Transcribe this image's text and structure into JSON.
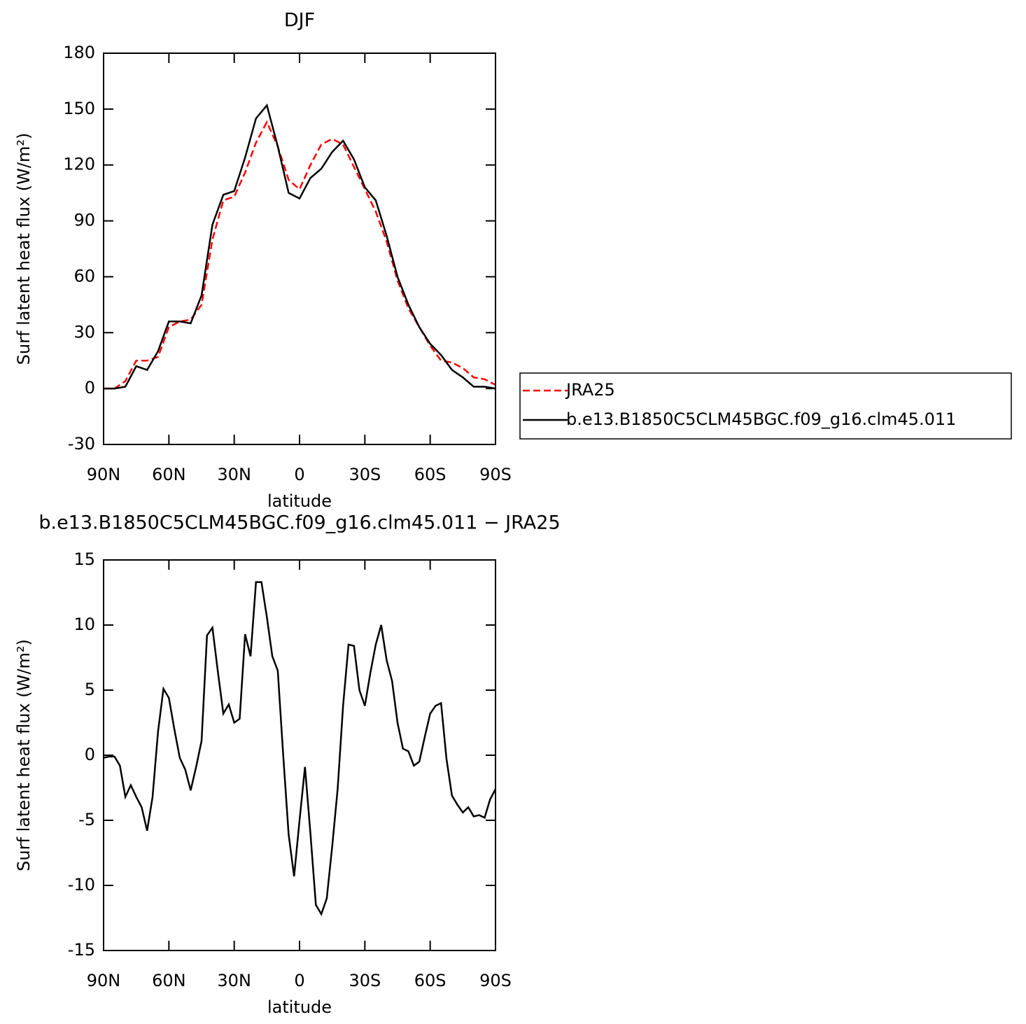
{
  "chart_data": [
    {
      "type": "line",
      "title": "DJF",
      "xlabel": "latitude",
      "ylabel": "Surf latent heat flux (W/m²)",
      "x": [
        90,
        85,
        80,
        75,
        70,
        65,
        60,
        55,
        50,
        45,
        40,
        35,
        30,
        25,
        20,
        15,
        10,
        5,
        0,
        -5,
        -10,
        -15,
        -20,
        -25,
        -30,
        -35,
        -40,
        -45,
        -50,
        -55,
        -60,
        -65,
        -70,
        -75,
        -80,
        -85,
        -90
      ],
      "series": [
        {
          "name": "JRA25",
          "color": "#ff0000",
          "style": "dashed",
          "values": [
            0,
            0,
            4,
            15,
            15,
            17,
            33,
            36,
            37,
            45,
            80,
            101,
            103,
            116,
            132,
            143,
            130,
            112,
            107,
            120,
            131,
            134,
            131,
            119,
            107,
            95,
            79,
            58,
            43,
            33,
            23,
            15,
            14,
            11,
            6,
            5,
            2
          ]
        },
        {
          "name": "b.e13.B1850C5CLM45BGC.f09_g16.clm45.011",
          "color": "#000000",
          "style": "solid",
          "values": [
            0,
            0,
            1,
            12,
            10,
            20,
            36,
            36,
            35,
            50,
            88,
            104,
            106,
            124,
            145,
            152,
            130,
            105,
            102,
            113,
            118,
            127,
            133,
            123,
            108,
            101,
            82,
            60,
            45,
            33,
            24,
            18,
            10,
            6,
            1,
            1,
            0
          ]
        }
      ],
      "xlim": [
        90,
        -90
      ],
      "xticks": [
        {
          "value": 90,
          "label": "90N"
        },
        {
          "value": 60,
          "label": "60N"
        },
        {
          "value": 30,
          "label": "30N"
        },
        0,
        {
          "value": -30,
          "label": "30S"
        },
        {
          "value": -60,
          "label": "60S"
        },
        {
          "value": -90,
          "label": "90S"
        }
      ],
      "ylim": [
        -30,
        180
      ],
      "yticks": [
        -30,
        0,
        30,
        60,
        90,
        120,
        150,
        180
      ],
      "legend": "right"
    },
    {
      "type": "line",
      "title": "b.e13.B1850C5CLM45BGC.f09_g16.clm45.011 − JRA25",
      "xlabel": "latitude",
      "ylabel": "Surf latent heat flux (W/m²)",
      "x": [
        90,
        87.5,
        85,
        82.5,
        80,
        77.5,
        75,
        72.5,
        70,
        67.5,
        65,
        62.5,
        60,
        57.5,
        55,
        52.5,
        50,
        47.5,
        45,
        42.5,
        40,
        37.5,
        35,
        32.5,
        30,
        27.5,
        25,
        22.5,
        20,
        17.5,
        15,
        12.5,
        10,
        7.5,
        5,
        2.5,
        0,
        -2.5,
        -5,
        -7.5,
        -10,
        -12.5,
        -15,
        -17.5,
        -20,
        -22.5,
        -25,
        -27.5,
        -30,
        -32.5,
        -35,
        -37.5,
        -40,
        -42.5,
        -45,
        -47.5,
        -50,
        -52.5,
        -55,
        -57.5,
        -60,
        -62.5,
        -65,
        -67.5,
        -70,
        -72.5,
        -75,
        -77.5,
        -80,
        -82.5,
        -85,
        -87.5,
        -90
      ],
      "series": [
        {
          "color": "#000000",
          "style": "solid",
          "values": [
            -0.2,
            -0.1,
            -0.1,
            -0.8,
            -3.2,
            -2.3,
            -3.2,
            -4.0,
            -5.8,
            -3.2,
            1.8,
            5.1,
            4.4,
            2.0,
            -0.2,
            -1.1,
            -2.7,
            -0.9,
            1.1,
            9.2,
            9.8,
            6.4,
            3.2,
            3.9,
            2.5,
            2.8,
            9.3,
            7.6,
            13.3,
            13.3,
            10.6,
            7.6,
            6.5,
            0.0,
            -6.1,
            -9.3,
            -5.0,
            -0.9,
            -6.0,
            -11.5,
            -12.2,
            -11.0,
            -7.0,
            -2.6,
            3.8,
            8.5,
            8.4,
            5.0,
            3.8,
            6.3,
            8.5,
            10.0,
            7.3,
            5.7,
            2.5,
            0.5,
            0.3,
            -0.8,
            -0.5,
            1.4,
            3.2,
            3.8,
            4.0,
            -0.3,
            -3.1,
            -3.8,
            -4.4,
            -4.0,
            -4.7,
            -4.6,
            -4.8,
            -3.4,
            -2.6
          ]
        }
      ],
      "xlim": [
        90,
        -90
      ],
      "xticks": [
        {
          "value": 90,
          "label": "90N"
        },
        {
          "value": 60,
          "label": "60N"
        },
        {
          "value": 30,
          "label": "30N"
        },
        0,
        {
          "value": -30,
          "label": "30S"
        },
        {
          "value": -60,
          "label": "60S"
        },
        {
          "value": -90,
          "label": "90S"
        }
      ],
      "ylim": [
        -15,
        15
      ],
      "yticks": [
        -15,
        -10,
        -5,
        0,
        5,
        10,
        15
      ]
    }
  ]
}
